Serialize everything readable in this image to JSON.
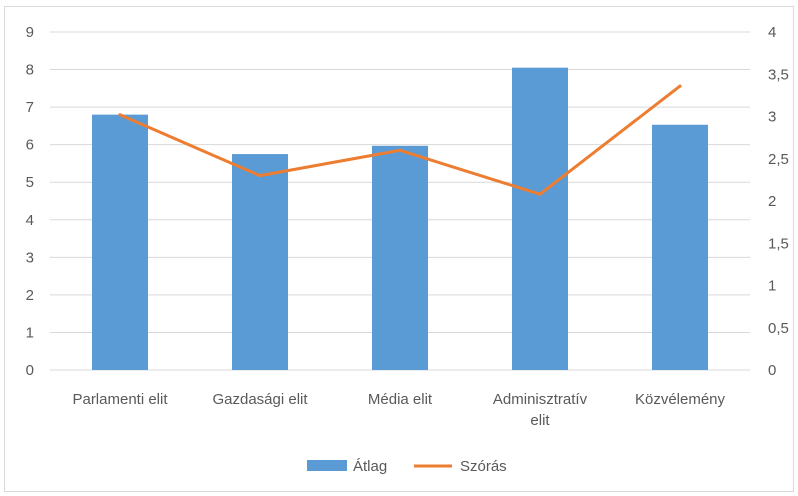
{
  "chart_data": {
    "type": "bar",
    "categories": [
      "Parlamenti elit",
      "Gazdasági elit",
      "Média elit",
      "Adminisztratív elit",
      "Közvélemény"
    ],
    "category_lines": [
      [
        "Parlamenti elit"
      ],
      [
        "Gazdasági elit"
      ],
      [
        "Média elit"
      ],
      [
        "Adminisztratív",
        "elit"
      ],
      [
        "Közvélemény"
      ]
    ],
    "series": [
      {
        "name": "Átlag",
        "type": "bar",
        "axis": "left",
        "values": [
          6.8,
          5.75,
          5.97,
          8.05,
          6.53
        ],
        "color": "#5b9bd5"
      },
      {
        "name": "Szórás",
        "type": "line",
        "axis": "right",
        "values": [
          3.02,
          2.3,
          2.6,
          2.08,
          3.36
        ],
        "color": "#ed7d31"
      }
    ],
    "y_left": {
      "ylim": [
        0,
        9
      ],
      "ticks": [
        "0",
        "1",
        "2",
        "3",
        "4",
        "5",
        "6",
        "7",
        "8",
        "9"
      ]
    },
    "y_right": {
      "ylim": [
        0,
        4
      ],
      "ticks": [
        "0",
        "0,5",
        "1",
        "1,5",
        "2",
        "2,5",
        "3",
        "3,5",
        "4"
      ]
    },
    "grid": true,
    "legend": "bottom",
    "gridline_color": "#d9d9d9",
    "text_color": "#595959"
  }
}
